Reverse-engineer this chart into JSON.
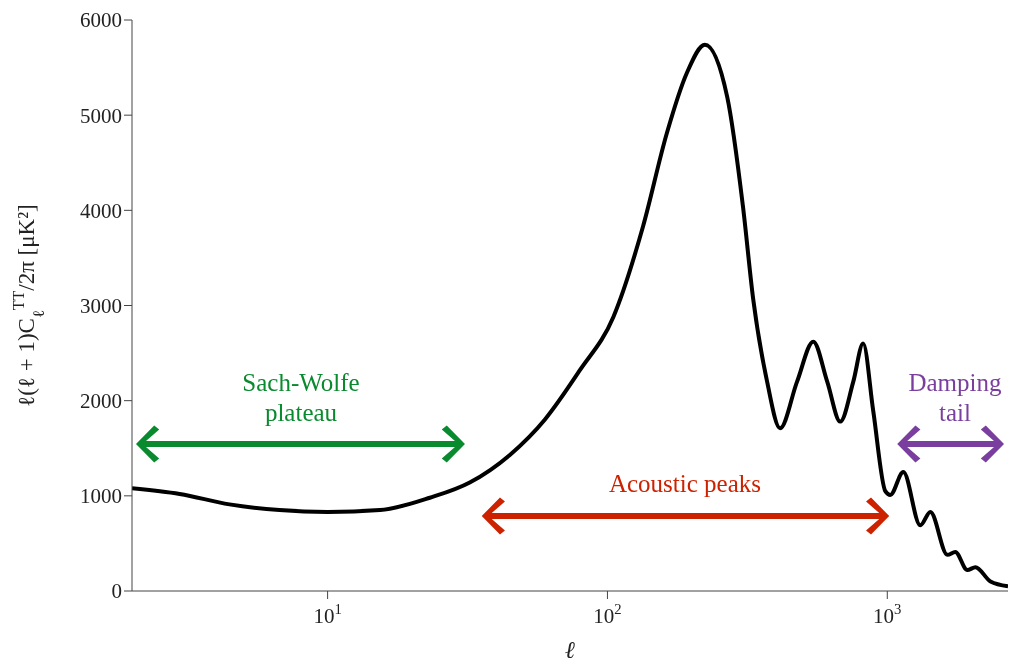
{
  "chart_data": {
    "type": "line",
    "xlabel": "ℓ",
    "ylabel": "ℓ(ℓ + 1)C$_{ℓ}$$^{TT}$/2π [μK²]",
    "log": "x",
    "xlim": [
      2,
      2700
    ],
    "xticks": [
      {
        "value": 10,
        "label": "10$^{1}$"
      },
      {
        "value": 100,
        "label": "10$^{2}$"
      },
      {
        "value": 1000,
        "label": "10$^{3}$"
      }
    ],
    "ylim": [
      0,
      6000
    ],
    "yticks": [
      0,
      1000,
      2000,
      3000,
      4000,
      5000,
      6000
    ],
    "grid": false,
    "legend": false,
    "marker": "none",
    "line_style": "solid",
    "x": [
      2,
      2.96,
      4.46,
      6.73,
      10,
      15.4,
      23.2,
      32.2,
      44.8,
      59.7,
      79.7,
      105,
      134,
      163,
      192,
      223,
      268,
      305,
      332,
      372,
      414,
      476,
      544,
      610,
      679,
      756,
      820,
      891,
      984,
      1025,
      1141,
      1312,
      1425,
      1640,
      1750,
      1932,
      2065,
      2338,
      2700
    ],
    "series": [
      {
        "color": "#000000",
        "values": [
          1080,
          1020,
          910,
          850,
          830,
          850,
          980,
          1140,
          1430,
          1800,
          2320,
          2880,
          3830,
          4810,
          5440,
          5740,
          5190,
          4040,
          3060,
          2200,
          1710,
          2200,
          2620,
          2200,
          1780,
          2200,
          2600,
          1890,
          1050,
          1010,
          1250,
          690,
          830,
          380,
          410,
          220,
          250,
          100,
          50
        ]
      }
    ],
    "annotations": [
      "Sach-Wolfe plateau",
      "Acoustic peaks",
      "Damping tail"
    ]
  }
}
